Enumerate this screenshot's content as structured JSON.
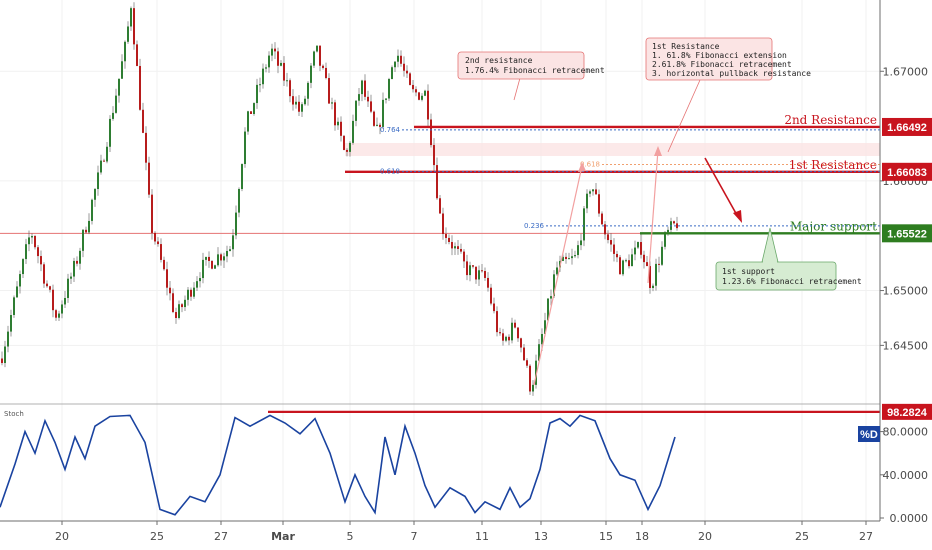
{
  "chart_data": {
    "type": "candlestick",
    "price_axis": {
      "ylim": [
        1.6402,
        1.6765
      ],
      "ticks": [
        {
          "value": 1.67,
          "label": "1.67000"
        },
        {
          "value": 1.66,
          "label": "1.66000"
        },
        {
          "value": 1.65,
          "label": "1.65000"
        },
        {
          "value": 1.645,
          "label": "1.64500"
        }
      ]
    },
    "x_ticks": [
      {
        "label": "20",
        "bold": false
      },
      {
        "label": "25",
        "bold": false
      },
      {
        "label": "27",
        "bold": false
      },
      {
        "label": "Mar",
        "bold": true
      },
      {
        "label": "5",
        "bold": false
      },
      {
        "label": "7",
        "bold": false
      },
      {
        "label": "11",
        "bold": false
      },
      {
        "label": "13",
        "bold": false
      },
      {
        "label": "15",
        "bold": false
      },
      {
        "label": "18",
        "bold": false
      },
      {
        "label": "20",
        "bold": false
      },
      {
        "label": "25",
        "bold": false
      },
      {
        "label": "27",
        "bold": false
      }
    ],
    "price_waypoints": [
      [
        0,
        1.6438
      ],
      [
        30,
        1.6555
      ],
      [
        55,
        1.6475
      ],
      [
        75,
        1.6525
      ],
      [
        100,
        1.6612
      ],
      [
        125,
        1.6725
      ],
      [
        130,
        1.6762
      ],
      [
        150,
        1.656
      ],
      [
        175,
        1.6475
      ],
      [
        200,
        1.652
      ],
      [
        230,
        1.654
      ],
      [
        245,
        1.665
      ],
      [
        270,
        1.672
      ],
      [
        300,
        1.666
      ],
      [
        315,
        1.672
      ],
      [
        345,
        1.662
      ],
      [
        360,
        1.669
      ],
      [
        375,
        1.664
      ],
      [
        395,
        1.672
      ],
      [
        410,
        1.668
      ],
      [
        425,
        1.668
      ],
      [
        440,
        1.656
      ],
      [
        465,
        1.652
      ],
      [
        485,
        1.651
      ],
      [
        500,
        1.645
      ],
      [
        515,
        1.647
      ],
      [
        530,
        1.641
      ],
      [
        555,
        1.652
      ],
      [
        575,
        1.653
      ],
      [
        590,
        1.66
      ],
      [
        605,
        1.655
      ],
      [
        620,
        1.652
      ],
      [
        640,
        1.654
      ],
      [
        650,
        1.6505
      ],
      [
        665,
        1.655
      ],
      [
        676,
        1.6562
      ]
    ],
    "levels": [
      {
        "name": "2nd Resistance",
        "value": 1.66492,
        "label": "2nd Resistance",
        "tag": "1.66492",
        "color": "#c8141e"
      },
      {
        "name": "1st Resistance",
        "value": 1.66083,
        "label": "1st Resistance",
        "tag": "1.66083",
        "color": "#c8141e"
      },
      {
        "name": "Major support",
        "value": 1.65522,
        "label": "Major support",
        "tag": "1.65522",
        "color": "#2e7d20"
      }
    ],
    "fib_markers": [
      {
        "label": "0.764",
        "value": 1.66465
      },
      {
        "label": "0.618",
        "value": 1.66085
      },
      {
        "label": "0.618",
        "value": 1.6615
      },
      {
        "label": "0.236",
        "value": 1.6559
      }
    ],
    "current_price_line": 1.65522,
    "annotations": {
      "second_resistance": [
        "2nd resistance",
        "1.76.4% Fibonacci retracement"
      ],
      "first_resistance": [
        "1st Resistance",
        "1. 61.8% Fibonacci extension",
        "2.61.8% Fibonacci retracement",
        "3. horizontal pullback resistance"
      ],
      "first_support": [
        "1st support",
        "1.23.6% Fibonacci retracement"
      ]
    },
    "stochastic": {
      "title": "Stoch",
      "ylim": [
        0,
        100
      ],
      "ticks": [
        {
          "value": 80,
          "label": "80.0000"
        },
        {
          "value": 40,
          "label": "40.0000"
        },
        {
          "value": 0,
          "label": "0.0000"
        }
      ],
      "level": {
        "value": 98.2824,
        "tag": "98.2824"
      },
      "badge": "%D",
      "waypoints": [
        [
          0,
          10
        ],
        [
          15,
          50
        ],
        [
          25,
          80
        ],
        [
          35,
          60
        ],
        [
          45,
          90
        ],
        [
          55,
          70
        ],
        [
          65,
          45
        ],
        [
          75,
          75
        ],
        [
          85,
          55
        ],
        [
          95,
          85
        ],
        [
          110,
          94
        ],
        [
          130,
          95
        ],
        [
          145,
          70
        ],
        [
          160,
          8
        ],
        [
          175,
          3
        ],
        [
          190,
          20
        ],
        [
          205,
          15
        ],
        [
          220,
          40
        ],
        [
          235,
          93
        ],
        [
          250,
          85
        ],
        [
          270,
          95
        ],
        [
          285,
          88
        ],
        [
          300,
          78
        ],
        [
          315,
          92
        ],
        [
          330,
          60
        ],
        [
          345,
          15
        ],
        [
          355,
          40
        ],
        [
          365,
          20
        ],
        [
          375,
          5
        ],
        [
          385,
          75
        ],
        [
          395,
          40
        ],
        [
          405,
          85
        ],
        [
          415,
          60
        ],
        [
          425,
          30
        ],
        [
          435,
          10
        ],
        [
          450,
          28
        ],
        [
          465,
          20
        ],
        [
          475,
          5
        ],
        [
          485,
          15
        ],
        [
          500,
          8
        ],
        [
          510,
          28
        ],
        [
          520,
          10
        ],
        [
          530,
          18
        ],
        [
          540,
          45
        ],
        [
          550,
          88
        ],
        [
          560,
          92
        ],
        [
          570,
          85
        ],
        [
          580,
          95
        ],
        [
          595,
          90
        ],
        [
          610,
          55
        ],
        [
          620,
          40
        ],
        [
          635,
          35
        ],
        [
          648,
          8
        ],
        [
          660,
          30
        ],
        [
          675,
          75
        ]
      ]
    }
  }
}
